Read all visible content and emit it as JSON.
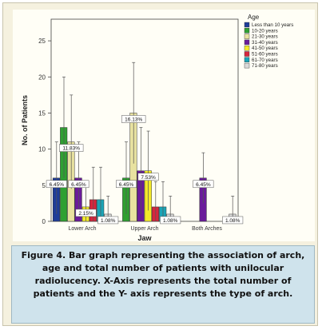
{
  "colors": {
    "panel": "#fffef6",
    "caption_bg": "#cfe3ec",
    "frame_bg": "#f5f1df"
  },
  "legend_title": "Age",
  "caption": "Figure 4. Bar graph representing the association of arch, age and total number of patients with unilocular radiolucency. X-Axis represents the total number of patients and the Y- axis represents the type of arch.",
  "chart_data": {
    "type": "bar",
    "xlabel": "Jaw",
    "ylabel": "No. of Patients",
    "ylim": [
      0,
      28
    ],
    "yticks": [
      0,
      5,
      10,
      15,
      20,
      25
    ],
    "grid": false,
    "legend_position": "right",
    "error_bars": true,
    "categories": [
      "Lower Arch",
      "Upper Arch",
      "Both Arches"
    ],
    "series": [
      {
        "name": "Less than 10 years",
        "color": "#1f3d99",
        "values": [
          6,
          0,
          0
        ],
        "err": [
          5,
          0,
          0
        ],
        "labels": [
          "6.45%",
          "",
          ""
        ]
      },
      {
        "name": "10-20 years",
        "color": "#2fa032",
        "values": [
          13,
          6,
          0
        ],
        "err": [
          7,
          5,
          0
        ],
        "labels": [
          "",
          "6.45%",
          ""
        ]
      },
      {
        "name": "21-30 years",
        "color": "#e8e2a0",
        "values": [
          11,
          15,
          0
        ],
        "err": [
          6.5,
          7,
          0
        ],
        "labels": [
          "11.83%",
          "16.13%",
          ""
        ]
      },
      {
        "name": "31-40 years",
        "color": "#6a1b9a",
        "values": [
          6,
          7,
          6
        ],
        "err": [
          5,
          6,
          3.5
        ],
        "labels": [
          "6.45%",
          "",
          "6.45%"
        ]
      },
      {
        "name": "41-50 years",
        "color": "#f4ea2a",
        "values": [
          2,
          7,
          0
        ],
        "err": [
          3.5,
          5.5,
          0
        ],
        "labels": [
          "2.15%",
          "7.53%",
          ""
        ]
      },
      {
        "name": "51-60 years",
        "color": "#d7263d",
        "values": [
          3,
          2,
          0
        ],
        "err": [
          4.5,
          3.5,
          0
        ],
        "labels": [
          "",
          "",
          ""
        ]
      },
      {
        "name": "61-70 years",
        "color": "#1aa5b8",
        "values": [
          3,
          2,
          0
        ],
        "err": [
          4.5,
          3.5,
          0
        ],
        "labels": [
          "",
          "",
          ""
        ]
      },
      {
        "name": "71-80 years",
        "color": "#d9d9d9",
        "values": [
          1,
          1,
          1
        ],
        "err": [
          2.5,
          2.5,
          2.5
        ],
        "labels": [
          "1.08%",
          "1.08%",
          "1.08%"
        ]
      }
    ]
  }
}
